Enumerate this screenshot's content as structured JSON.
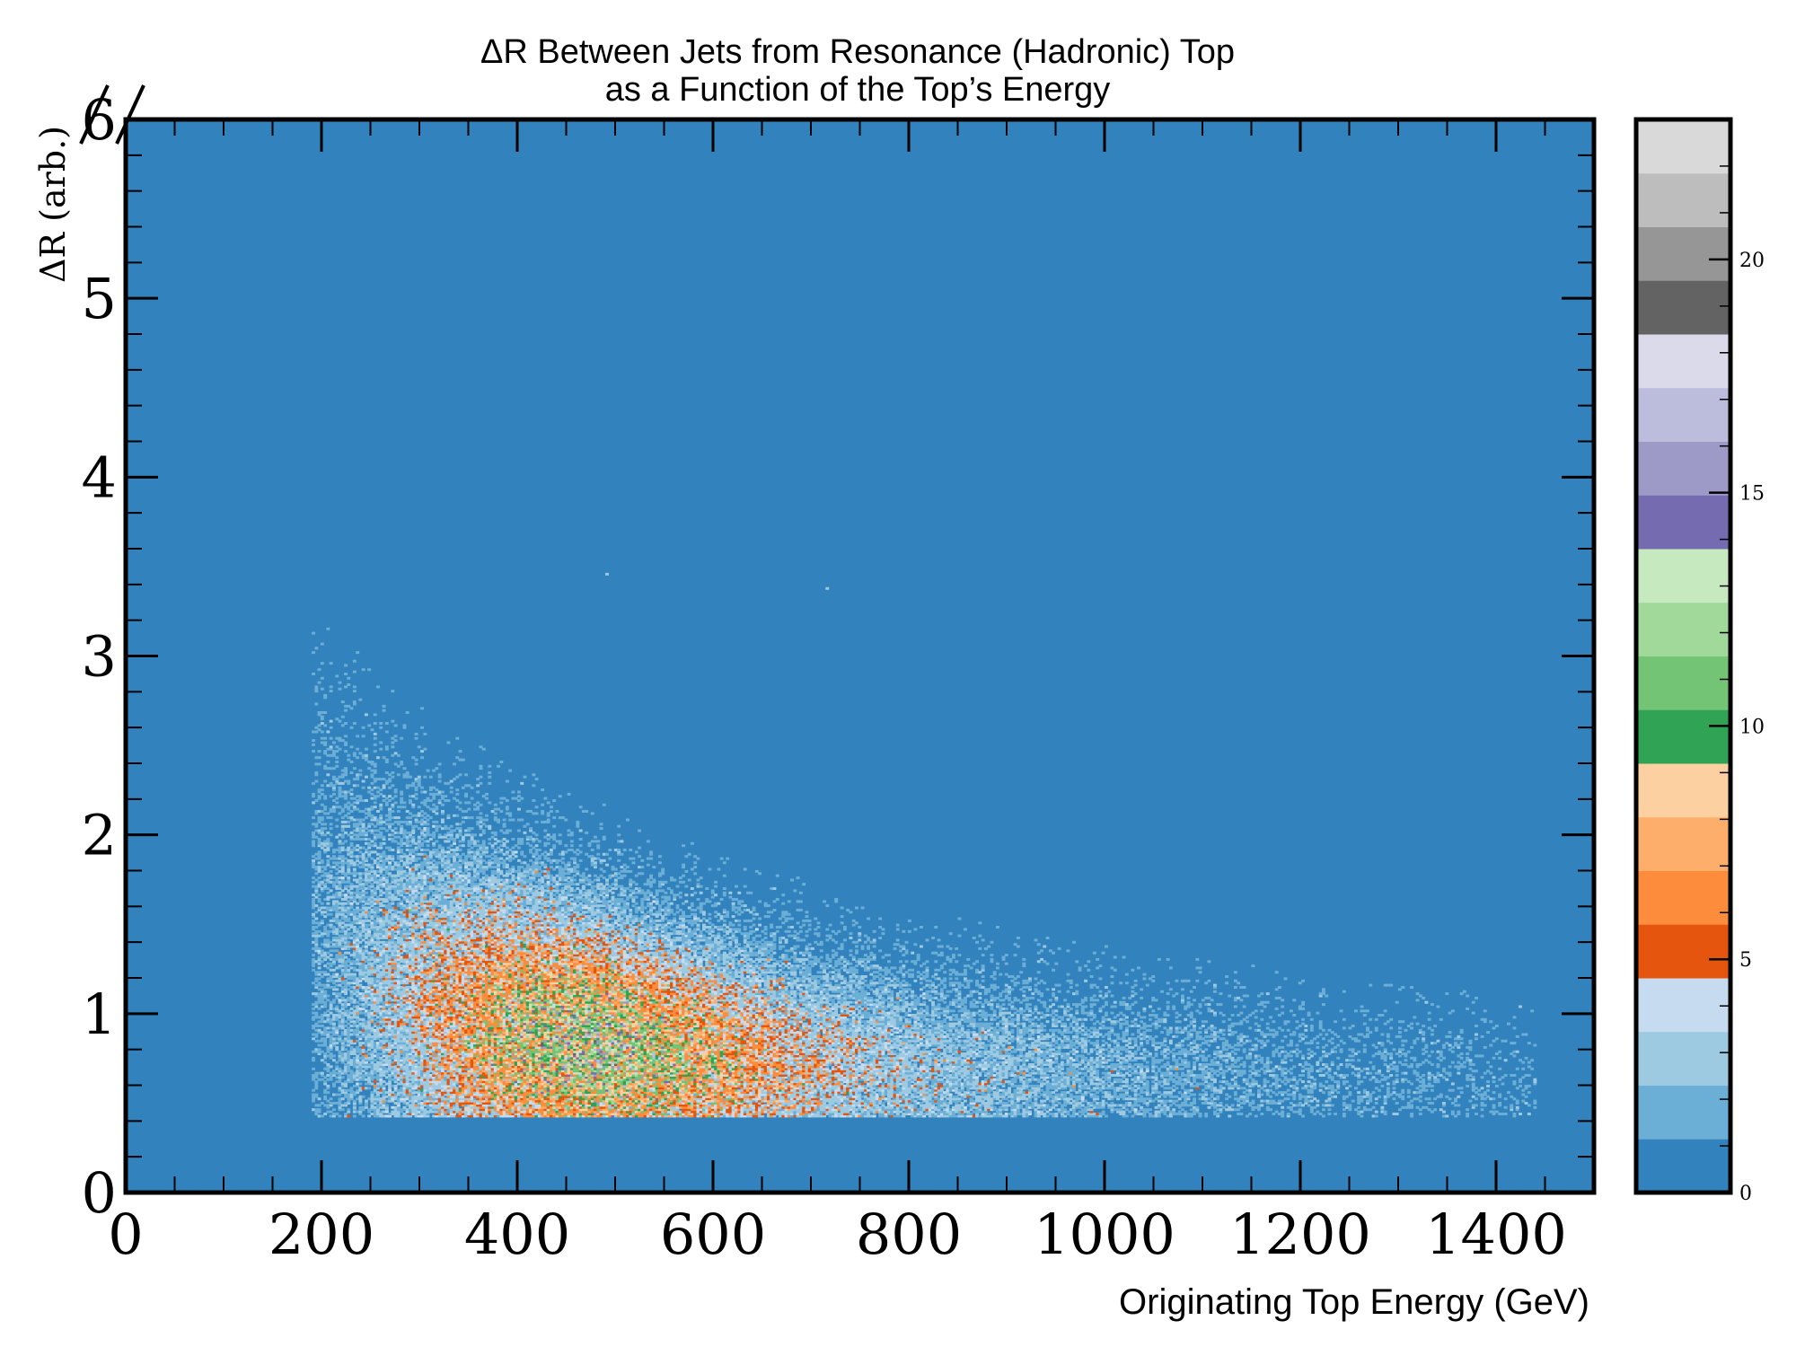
{
  "chart_data": {
    "type": "heatmap",
    "title_lines": [
      "ΔR Between Jets from Resonance (Hadronic) Top",
      "as a Function of the Top’s Energy"
    ],
    "xlabel": "Originating Top Energy (GeV)",
    "ylabel": "ΔR (arb.)",
    "xlim": [
      0,
      1500
    ],
    "ylim": [
      0,
      6
    ],
    "x_ticks": [
      "0",
      "200",
      "400",
      "600",
      "800",
      "1000",
      "1200",
      "1400"
    ],
    "y_ticks": [
      "0",
      "1",
      "2",
      "3",
      "4",
      "5",
      "6"
    ],
    "grid": false,
    "background_color": "#3182bd",
    "colorbar": {
      "range": [
        0,
        23
      ],
      "tick_labels": [
        "0",
        "5",
        "10",
        "15",
        "20"
      ],
      "colors": [
        "#3182bd",
        "#6baed6",
        "#9ecae1",
        "#c6dbef",
        "#e6550d",
        "#fd8d3c",
        "#fdae6b",
        "#fdd0a2",
        "#31a354",
        "#74c476",
        "#a1d99b",
        "#c7e9c0",
        "#756bb1",
        "#9e9ac8",
        "#bcbddc",
        "#dadaeb",
        "#636363",
        "#969696",
        "#bdbdbd",
        "#d9d9d9"
      ]
    },
    "distribution": {
      "description_of_density": "counts per bin",
      "x_range": [
        190,
        1440
      ],
      "peak_x": 480,
      "peak_y": 0.7,
      "min_y_edge": 0.42,
      "max_count_approx": 12,
      "high_density_region": {
        "x": [
          330,
          760
        ],
        "y": [
          0.45,
          1.5
        ]
      },
      "sparse_tail": {
        "x": [
          760,
          1440
        ],
        "y": [
          0.42,
          1.4
        ]
      },
      "outliers": [
        [
          490,
          3.45
        ],
        [
          715,
          3.37
        ]
      ]
    }
  }
}
